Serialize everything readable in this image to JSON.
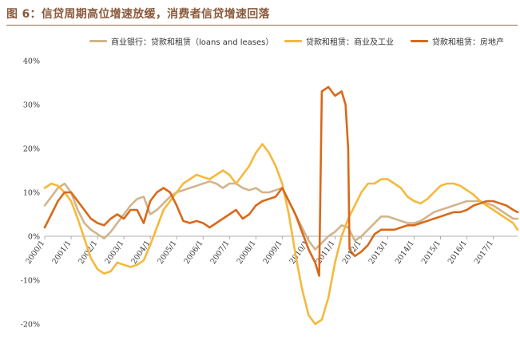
{
  "figure_title": "图 6：信贷周期高位增速放缓，消费者信贷增速回落",
  "chart_data": {
    "type": "line",
    "title": "",
    "xlabel": "",
    "ylabel": "",
    "ylim": [
      -20,
      40
    ],
    "y_ticks": [
      -20,
      -10,
      0,
      10,
      20,
      30,
      40
    ],
    "y_tick_labels": [
      "-20%",
      "-10%",
      "0%",
      "10%",
      "20%",
      "30%",
      "40%"
    ],
    "x_range": [
      2000,
      2017.92
    ],
    "x_tick_labels": [
      "2000/1",
      "2001/1",
      "2002/1",
      "2003/1",
      "2004/1",
      "2005/1",
      "2006/1",
      "2007/1",
      "2008/1",
      "2009/1",
      "2010/1",
      "2011/1",
      "2012/1",
      "2013/1",
      "2014/1",
      "2015/1",
      "2016/1",
      "2017/1"
    ],
    "grid": false,
    "legend_position": "top",
    "series": [
      {
        "name": "商业银行：贷款和租赁（loans and leases）",
        "color": "#d2b48c",
        "points": [
          [
            2000.0,
            7
          ],
          [
            2000.25,
            9
          ],
          [
            2000.5,
            11
          ],
          [
            2000.75,
            12
          ],
          [
            2001.0,
            10
          ],
          [
            2001.25,
            6
          ],
          [
            2001.5,
            3
          ],
          [
            2001.75,
            1.5
          ],
          [
            2002.0,
            0.5
          ],
          [
            2002.25,
            -0.5
          ],
          [
            2002.5,
            1
          ],
          [
            2002.75,
            3
          ],
          [
            2003.0,
            5
          ],
          [
            2003.25,
            7
          ],
          [
            2003.5,
            8.5
          ],
          [
            2003.75,
            9
          ],
          [
            2004.0,
            5
          ],
          [
            2004.25,
            6
          ],
          [
            2004.5,
            7.5
          ],
          [
            2004.75,
            9
          ],
          [
            2005.0,
            10
          ],
          [
            2005.25,
            10.5
          ],
          [
            2005.5,
            11
          ],
          [
            2005.75,
            11.5
          ],
          [
            2006.0,
            12
          ],
          [
            2006.25,
            12.5
          ],
          [
            2006.5,
            12
          ],
          [
            2006.75,
            11
          ],
          [
            2007.0,
            12
          ],
          [
            2007.25,
            12
          ],
          [
            2007.5,
            11
          ],
          [
            2007.75,
            10.5
          ],
          [
            2008.0,
            11
          ],
          [
            2008.25,
            10
          ],
          [
            2008.5,
            10
          ],
          [
            2008.75,
            10.5
          ],
          [
            2009.0,
            11
          ],
          [
            2009.25,
            8
          ],
          [
            2009.5,
            5
          ],
          [
            2009.75,
            2
          ],
          [
            2010.0,
            -1
          ],
          [
            2010.25,
            -3
          ],
          [
            2010.5,
            -1.5
          ],
          [
            2010.75,
            0
          ],
          [
            2011.0,
            1
          ],
          [
            2011.25,
            2.5
          ],
          [
            2011.5,
            2
          ],
          [
            2011.75,
            -1
          ],
          [
            2012.0,
            0
          ],
          [
            2012.25,
            1.5
          ],
          [
            2012.5,
            3
          ],
          [
            2012.75,
            4.5
          ],
          [
            2013.0,
            4.5
          ],
          [
            2013.25,
            4
          ],
          [
            2013.5,
            3.5
          ],
          [
            2013.75,
            3
          ],
          [
            2014.0,
            3
          ],
          [
            2014.25,
            3.5
          ],
          [
            2014.5,
            4.5
          ],
          [
            2014.75,
            5.5
          ],
          [
            2015.0,
            6
          ],
          [
            2015.25,
            6.5
          ],
          [
            2015.5,
            7
          ],
          [
            2015.75,
            7.5
          ],
          [
            2016.0,
            8
          ],
          [
            2016.25,
            8
          ],
          [
            2016.5,
            8
          ],
          [
            2016.75,
            7.5
          ],
          [
            2017.0,
            7
          ],
          [
            2017.25,
            6
          ],
          [
            2017.5,
            5
          ],
          [
            2017.75,
            4
          ],
          [
            2017.92,
            4
          ]
        ]
      },
      {
        "name": "贷款和租赁：商业及工业",
        "color": "#f5b93c",
        "points": [
          [
            2000.0,
            11
          ],
          [
            2000.25,
            12
          ],
          [
            2000.5,
            11.5
          ],
          [
            2000.75,
            10
          ],
          [
            2001.0,
            8
          ],
          [
            2001.25,
            4
          ],
          [
            2001.5,
            -0.5
          ],
          [
            2001.75,
            -5
          ],
          [
            2002.0,
            -7.5
          ],
          [
            2002.25,
            -8.5
          ],
          [
            2002.5,
            -8
          ],
          [
            2002.75,
            -6
          ],
          [
            2003.0,
            -6.5
          ],
          [
            2003.25,
            -7
          ],
          [
            2003.5,
            -6.5
          ],
          [
            2003.75,
            -5.5
          ],
          [
            2004.0,
            -2
          ],
          [
            2004.25,
            2
          ],
          [
            2004.5,
            6
          ],
          [
            2004.75,
            8
          ],
          [
            2005.0,
            10
          ],
          [
            2005.25,
            12
          ],
          [
            2005.5,
            13
          ],
          [
            2005.75,
            14
          ],
          [
            2006.0,
            13.5
          ],
          [
            2006.25,
            13
          ],
          [
            2006.5,
            14
          ],
          [
            2006.75,
            15
          ],
          [
            2007.0,
            14
          ],
          [
            2007.25,
            12
          ],
          [
            2007.5,
            14
          ],
          [
            2007.75,
            16
          ],
          [
            2008.0,
            19
          ],
          [
            2008.25,
            21
          ],
          [
            2008.5,
            19
          ],
          [
            2008.75,
            16
          ],
          [
            2009.0,
            12
          ],
          [
            2009.25,
            5
          ],
          [
            2009.5,
            -4
          ],
          [
            2009.75,
            -12
          ],
          [
            2010.0,
            -18
          ],
          [
            2010.25,
            -20
          ],
          [
            2010.5,
            -19
          ],
          [
            2010.75,
            -14
          ],
          [
            2011.0,
            -6
          ],
          [
            2011.25,
            0
          ],
          [
            2011.5,
            4
          ],
          [
            2011.75,
            7
          ],
          [
            2012.0,
            10
          ],
          [
            2012.25,
            12
          ],
          [
            2012.5,
            12
          ],
          [
            2012.75,
            13
          ],
          [
            2013.0,
            13
          ],
          [
            2013.25,
            12
          ],
          [
            2013.5,
            11
          ],
          [
            2013.75,
            9
          ],
          [
            2014.0,
            8
          ],
          [
            2014.25,
            7.5
          ],
          [
            2014.5,
            8.5
          ],
          [
            2014.75,
            10
          ],
          [
            2015.0,
            11.5
          ],
          [
            2015.25,
            12
          ],
          [
            2015.5,
            12
          ],
          [
            2015.75,
            11.5
          ],
          [
            2016.0,
            10.5
          ],
          [
            2016.25,
            9.5
          ],
          [
            2016.5,
            8
          ],
          [
            2016.75,
            7
          ],
          [
            2017.0,
            6
          ],
          [
            2017.25,
            5
          ],
          [
            2017.5,
            4
          ],
          [
            2017.75,
            3
          ],
          [
            2017.92,
            1.5
          ]
        ]
      },
      {
        "name": "贷款和租赁：房地产",
        "color": "#d9691a",
        "points": [
          [
            2000.0,
            2
          ],
          [
            2000.25,
            5
          ],
          [
            2000.5,
            8
          ],
          [
            2000.75,
            10
          ],
          [
            2001.0,
            10
          ],
          [
            2001.25,
            8
          ],
          [
            2001.5,
            6
          ],
          [
            2001.75,
            4
          ],
          [
            2002.0,
            3
          ],
          [
            2002.25,
            2.5
          ],
          [
            2002.5,
            4
          ],
          [
            2002.75,
            5
          ],
          [
            2003.0,
            4
          ],
          [
            2003.25,
            6
          ],
          [
            2003.5,
            6
          ],
          [
            2003.75,
            3
          ],
          [
            2004.0,
            8
          ],
          [
            2004.25,
            10
          ],
          [
            2004.5,
            11
          ],
          [
            2004.75,
            10
          ],
          [
            2005.0,
            7
          ],
          [
            2005.25,
            3.5
          ],
          [
            2005.5,
            3
          ],
          [
            2005.75,
            3.5
          ],
          [
            2006.0,
            3
          ],
          [
            2006.25,
            2
          ],
          [
            2006.5,
            3
          ],
          [
            2006.75,
            4
          ],
          [
            2007.0,
            5
          ],
          [
            2007.25,
            6
          ],
          [
            2007.5,
            4
          ],
          [
            2007.75,
            5
          ],
          [
            2008.0,
            7
          ],
          [
            2008.25,
            8
          ],
          [
            2008.5,
            8.5
          ],
          [
            2008.75,
            9
          ],
          [
            2009.0,
            11
          ],
          [
            2009.25,
            8
          ],
          [
            2009.5,
            5
          ],
          [
            2009.75,
            1
          ],
          [
            2010.0,
            -3
          ],
          [
            2010.25,
            -6
          ],
          [
            2010.4,
            -9
          ],
          [
            2010.5,
            33
          ],
          [
            2010.75,
            34
          ],
          [
            2011.0,
            32
          ],
          [
            2011.25,
            33
          ],
          [
            2011.4,
            30
          ],
          [
            2011.5,
            20
          ],
          [
            2011.55,
            -3
          ],
          [
            2011.75,
            -4.5
          ],
          [
            2012.0,
            -3.5
          ],
          [
            2012.25,
            -2
          ],
          [
            2012.5,
            0.5
          ],
          [
            2012.75,
            1.5
          ],
          [
            2013.0,
            1.5
          ],
          [
            2013.25,
            1.5
          ],
          [
            2013.5,
            2
          ],
          [
            2013.75,
            2.5
          ],
          [
            2014.0,
            2.5
          ],
          [
            2014.25,
            3
          ],
          [
            2014.5,
            3.5
          ],
          [
            2014.75,
            4
          ],
          [
            2015.0,
            4.5
          ],
          [
            2015.25,
            5
          ],
          [
            2015.5,
            5.5
          ],
          [
            2015.75,
            5.5
          ],
          [
            2016.0,
            6
          ],
          [
            2016.25,
            7
          ],
          [
            2016.5,
            7.5
          ],
          [
            2016.75,
            8
          ],
          [
            2017.0,
            8
          ],
          [
            2017.25,
            7.5
          ],
          [
            2017.5,
            7
          ],
          [
            2017.75,
            6
          ],
          [
            2017.92,
            5.5
          ]
        ]
      }
    ]
  }
}
